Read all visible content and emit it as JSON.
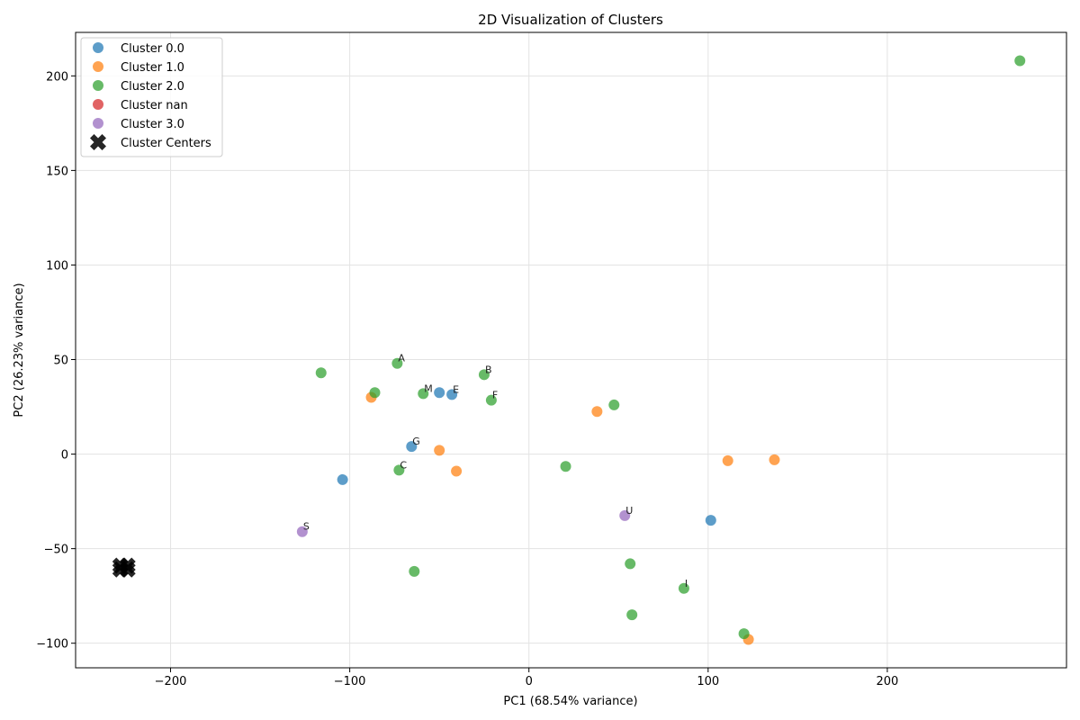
{
  "chart_data": {
    "type": "scatter",
    "title": "2D Visualization of Clusters",
    "xlabel": "PC1 (68.54% variance)",
    "ylabel": "PC2 (26.23% variance)",
    "xlim": [
      -253,
      300
    ],
    "ylim": [
      -113,
      223
    ],
    "xticks": [
      -200,
      -100,
      0,
      100,
      200
    ],
    "yticks": [
      -100,
      -50,
      0,
      50,
      100,
      150,
      200
    ],
    "grid": true,
    "legend_position": "top-left",
    "series": [
      {
        "name": "Cluster 0.0",
        "color": "#1f77b4",
        "points": [
          {
            "x": -104,
            "y": -13.5,
            "label": ""
          },
          {
            "x": -65.5,
            "y": 4,
            "label": "G"
          },
          {
            "x": -50,
            "y": 32.5,
            "label": ""
          },
          {
            "x": -43,
            "y": 31.5,
            "label": "E"
          },
          {
            "x": 101.5,
            "y": -35,
            "label": ""
          }
        ]
      },
      {
        "name": "Cluster 1.0",
        "color": "#ff7f0e",
        "points": [
          {
            "x": -88,
            "y": 30,
            "label": ""
          },
          {
            "x": -50,
            "y": 2,
            "label": ""
          },
          {
            "x": -40.5,
            "y": -9,
            "label": ""
          },
          {
            "x": 38,
            "y": 22.5,
            "label": ""
          },
          {
            "x": 111,
            "y": -3.5,
            "label": ""
          },
          {
            "x": 137,
            "y": -3,
            "label": ""
          },
          {
            "x": 122.5,
            "y": -98,
            "label": ""
          }
        ]
      },
      {
        "name": "Cluster 2.0",
        "color": "#2ca02c",
        "points": [
          {
            "x": 274,
            "y": 208,
            "label": ""
          },
          {
            "x": -116,
            "y": 43,
            "label": ""
          },
          {
            "x": -73.5,
            "y": 48,
            "label": "A"
          },
          {
            "x": -86,
            "y": 32.5,
            "label": ""
          },
          {
            "x": -59,
            "y": 32,
            "label": "M"
          },
          {
            "x": -25,
            "y": 42,
            "label": "B"
          },
          {
            "x": -21,
            "y": 28.5,
            "label": "F"
          },
          {
            "x": 47.5,
            "y": 26,
            "label": ""
          },
          {
            "x": -72.5,
            "y": -8.5,
            "label": "C"
          },
          {
            "x": 20.5,
            "y": -6.5,
            "label": ""
          },
          {
            "x": -64,
            "y": -62,
            "label": ""
          },
          {
            "x": 56.5,
            "y": -58,
            "label": ""
          },
          {
            "x": 86.5,
            "y": -71,
            "label": "I"
          },
          {
            "x": 57.5,
            "y": -85,
            "label": ""
          },
          {
            "x": 120,
            "y": -95,
            "label": ""
          }
        ]
      },
      {
        "name": "Cluster nan",
        "color": "#d62728",
        "points": []
      },
      {
        "name": "Cluster 3.0",
        "color": "#9467bd",
        "points": [
          {
            "x": -126.5,
            "y": -41,
            "label": "S"
          },
          {
            "x": 53.5,
            "y": -32.5,
            "label": "U"
          }
        ]
      }
    ],
    "centers": {
      "name": "Cluster Centers",
      "color": "#000000",
      "points": [
        {
          "x": -228,
          "y": -59
        },
        {
          "x": -224,
          "y": -59
        },
        {
          "x": -228,
          "y": -61
        },
        {
          "x": -224,
          "y": -61
        }
      ]
    }
  }
}
